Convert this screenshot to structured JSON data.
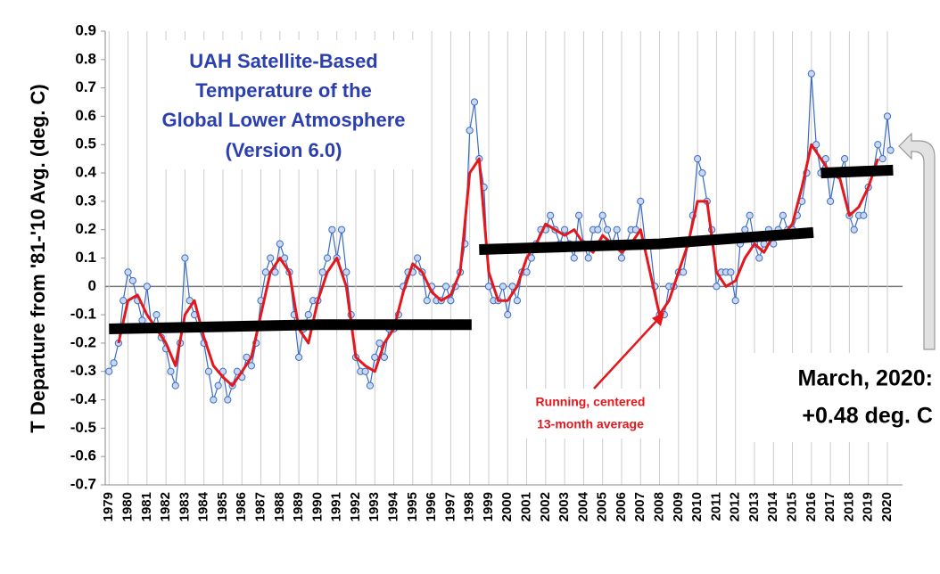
{
  "chart_data": {
    "type": "line",
    "title": [
      "UAH Satellite-Based",
      "Temperature of the",
      "Global Lower Atmosphere",
      "(Version 6.0)"
    ],
    "y_label": "T Departure from '81-'10 Avg. (deg. C)",
    "annotations": [
      "Running, centered",
      "13-month average",
      "March, 2020:",
      "+0.48 deg. C"
    ],
    "xlim": [
      1978.8,
      2020.8
    ],
    "xticks": [
      1979,
      1980,
      1981,
      1982,
      1983,
      1984,
      1985,
      1986,
      1987,
      1988,
      1989,
      1990,
      1991,
      1992,
      1993,
      1994,
      1995,
      1996,
      1997,
      1998,
      1999,
      2000,
      2001,
      2002,
      2003,
      2004,
      2005,
      2006,
      2007,
      2008,
      2009,
      2010,
      2011,
      2012,
      2013,
      2014,
      2015,
      2016,
      2017,
      2018,
      2019,
      2020
    ],
    "ylim": [
      -0.7,
      0.9
    ],
    "yticks": [
      -0.7,
      -0.6,
      -0.5,
      -0.4,
      -0.3,
      -0.2,
      -0.1,
      0,
      0.1,
      0.2,
      0.3,
      0.4,
      0.5,
      0.6,
      0.7,
      0.8,
      0.9
    ],
    "grid": "x",
    "series": [
      {
        "color": "#3a6cc4",
        "markers": true,
        "x": [
          1979,
          1979.25,
          1979.5,
          1979.75,
          1980,
          1980.25,
          1980.5,
          1980.75,
          1981,
          1981.25,
          1981.5,
          1981.75,
          1982,
          1982.25,
          1982.5,
          1982.75,
          1983,
          1983.25,
          1983.5,
          1983.75,
          1984,
          1984.25,
          1984.5,
          1984.75,
          1985,
          1985.25,
          1985.5,
          1985.75,
          1986,
          1986.25,
          1986.5,
          1986.75,
          1987,
          1987.25,
          1987.5,
          1987.75,
          1988,
          1988.25,
          1988.5,
          1988.75,
          1989,
          1989.25,
          1989.5,
          1989.75,
          1990,
          1990.25,
          1990.5,
          1990.75,
          1991,
          1991.25,
          1991.5,
          1991.75,
          1992,
          1992.25,
          1992.5,
          1992.75,
          1993,
          1993.25,
          1993.5,
          1993.75,
          1994,
          1994.25,
          1994.5,
          1994.75,
          1995,
          1995.25,
          1995.5,
          1995.75,
          1996,
          1996.25,
          1996.5,
          1996.75,
          1997,
          1997.25,
          1997.5,
          1997.75,
          1998,
          1998.25,
          1998.5,
          1998.75,
          1999,
          1999.25,
          1999.5,
          1999.75,
          2000,
          2000.25,
          2000.5,
          2000.75,
          2001,
          2001.25,
          2001.5,
          2001.75,
          2002,
          2002.25,
          2002.5,
          2002.75,
          2003,
          2003.25,
          2003.5,
          2003.75,
          2004,
          2004.25,
          2004.5,
          2004.75,
          2005,
          2005.25,
          2005.5,
          2005.75,
          2006,
          2006.25,
          2006.5,
          2006.75,
          2007,
          2007.25,
          2007.5,
          2007.75,
          2008,
          2008.25,
          2008.5,
          2008.75,
          2009,
          2009.25,
          2009.5,
          2009.75,
          2010,
          2010.25,
          2010.5,
          2010.75,
          2011,
          2011.25,
          2011.5,
          2011.75,
          2012,
          2012.25,
          2012.5,
          2012.75,
          2013,
          2013.25,
          2013.5,
          2013.75,
          2014,
          2014.25,
          2014.5,
          2014.75,
          2015,
          2015.25,
          2015.5,
          2015.75,
          2016,
          2016.25,
          2016.5,
          2016.75,
          2017,
          2017.25,
          2017.5,
          2017.75,
          2018,
          2018.25,
          2018.5,
          2018.75,
          2019,
          2019.25,
          2019.5,
          2019.75,
          2020,
          2020.17
        ],
        "values": [
          -0.3,
          -0.27,
          -0.2,
          -0.05,
          0.05,
          0.02,
          -0.05,
          -0.12,
          0.0,
          -0.15,
          -0.1,
          -0.18,
          -0.22,
          -0.3,
          -0.35,
          -0.2,
          0.1,
          -0.05,
          -0.1,
          -0.15,
          -0.2,
          -0.3,
          -0.4,
          -0.35,
          -0.3,
          -0.4,
          -0.35,
          -0.3,
          -0.32,
          -0.25,
          -0.28,
          -0.2,
          -0.05,
          0.05,
          0.1,
          0.05,
          0.15,
          0.1,
          0.05,
          -0.1,
          -0.25,
          -0.15,
          -0.1,
          -0.05,
          -0.05,
          0.05,
          0.1,
          0.2,
          0.1,
          0.2,
          0.05,
          -0.1,
          -0.25,
          -0.3,
          -0.3,
          -0.35,
          -0.25,
          -0.2,
          -0.25,
          -0.15,
          -0.15,
          -0.1,
          0.0,
          0.05,
          0.05,
          0.1,
          0.05,
          -0.05,
          0.0,
          -0.05,
          -0.05,
          0.0,
          -0.05,
          0.0,
          0.05,
          0.15,
          0.55,
          0.65,
          0.45,
          0.35,
          0.0,
          -0.05,
          -0.05,
          0.0,
          -0.1,
          0.0,
          -0.05,
          0.05,
          0.05,
          0.1,
          0.15,
          0.2,
          0.2,
          0.25,
          0.2,
          0.15,
          0.2,
          0.15,
          0.1,
          0.25,
          0.15,
          0.1,
          0.2,
          0.2,
          0.25,
          0.2,
          0.15,
          0.2,
          0.1,
          0.15,
          0.2,
          0.2,
          0.3,
          0.15,
          0.15,
          0.0,
          -0.1,
          -0.1,
          0.0,
          0.0,
          0.05,
          0.05,
          0.15,
          0.25,
          0.45,
          0.4,
          0.3,
          0.2,
          0.0,
          0.05,
          0.05,
          0.05,
          -0.05,
          0.15,
          0.2,
          0.25,
          0.15,
          0.1,
          0.15,
          0.2,
          0.15,
          0.2,
          0.25,
          0.2,
          0.2,
          0.25,
          0.3,
          0.4,
          0.75,
          0.5,
          0.4,
          0.45,
          0.3,
          0.4,
          0.4,
          0.45,
          0.25,
          0.2,
          0.25,
          0.25,
          0.35,
          0.4,
          0.5,
          0.45,
          0.6,
          0.48
        ]
      },
      {
        "color": "#e3171c",
        "width": 3,
        "x": [
          1979.5,
          1980,
          1980.5,
          1981,
          1981.5,
          1982,
          1982.5,
          1983,
          1983.5,
          1984,
          1984.5,
          1985,
          1985.5,
          1986,
          1986.5,
          1987,
          1987.5,
          1988,
          1988.5,
          1989,
          1989.5,
          1990,
          1990.5,
          1991,
          1991.5,
          1992,
          1992.5,
          1993,
          1993.5,
          1994,
          1994.5,
          1995,
          1995.5,
          1996,
          1996.5,
          1997,
          1997.5,
          1998,
          1998.5,
          1999,
          1999.5,
          2000,
          2000.5,
          2001,
          2001.5,
          2002,
          2002.5,
          2003,
          2003.5,
          2004,
          2004.5,
          2005,
          2005.5,
          2006,
          2006.5,
          2007,
          2007.5,
          2008,
          2008.5,
          2009,
          2009.5,
          2010,
          2010.5,
          2011,
          2011.5,
          2012,
          2012.5,
          2013,
          2013.5,
          2014,
          2014.5,
          2015,
          2015.5,
          2016,
          2016.5,
          2017,
          2017.5,
          2018,
          2018.5,
          2019,
          2019.5
        ],
        "values": [
          -0.2,
          -0.05,
          -0.03,
          -0.1,
          -0.15,
          -0.2,
          -0.28,
          -0.1,
          -0.05,
          -0.18,
          -0.28,
          -0.32,
          -0.35,
          -0.3,
          -0.25,
          -0.1,
          0.05,
          0.1,
          0.05,
          -0.15,
          -0.2,
          -0.05,
          0.05,
          0.1,
          0.0,
          -0.25,
          -0.28,
          -0.3,
          -0.2,
          -0.15,
          -0.02,
          0.08,
          0.05,
          -0.02,
          -0.05,
          -0.03,
          0.05,
          0.4,
          0.45,
          0.05,
          -0.05,
          -0.05,
          0.0,
          0.1,
          0.15,
          0.22,
          0.2,
          0.18,
          0.2,
          0.15,
          0.12,
          0.18,
          0.15,
          0.12,
          0.15,
          0.2,
          0.05,
          -0.1,
          -0.05,
          0.05,
          0.15,
          0.3,
          0.3,
          0.05,
          0.0,
          0.02,
          0.1,
          0.15,
          0.12,
          0.18,
          0.18,
          0.22,
          0.35,
          0.5,
          0.45,
          0.4,
          0.38,
          0.25,
          0.28,
          0.35,
          0.45
        ]
      },
      {
        "color": "#000000",
        "width": 12,
        "x": [
          1979,
          1990,
          1998.1,
          1998.3,
          1998.5,
          2008,
          2016.1,
          2016.3,
          2016.5,
          2020.3
        ],
        "values": [
          -0.15,
          -0.135,
          -0.135,
          null,
          0.13,
          0.15,
          0.19,
          null,
          0.4,
          0.41
        ]
      }
    ]
  }
}
